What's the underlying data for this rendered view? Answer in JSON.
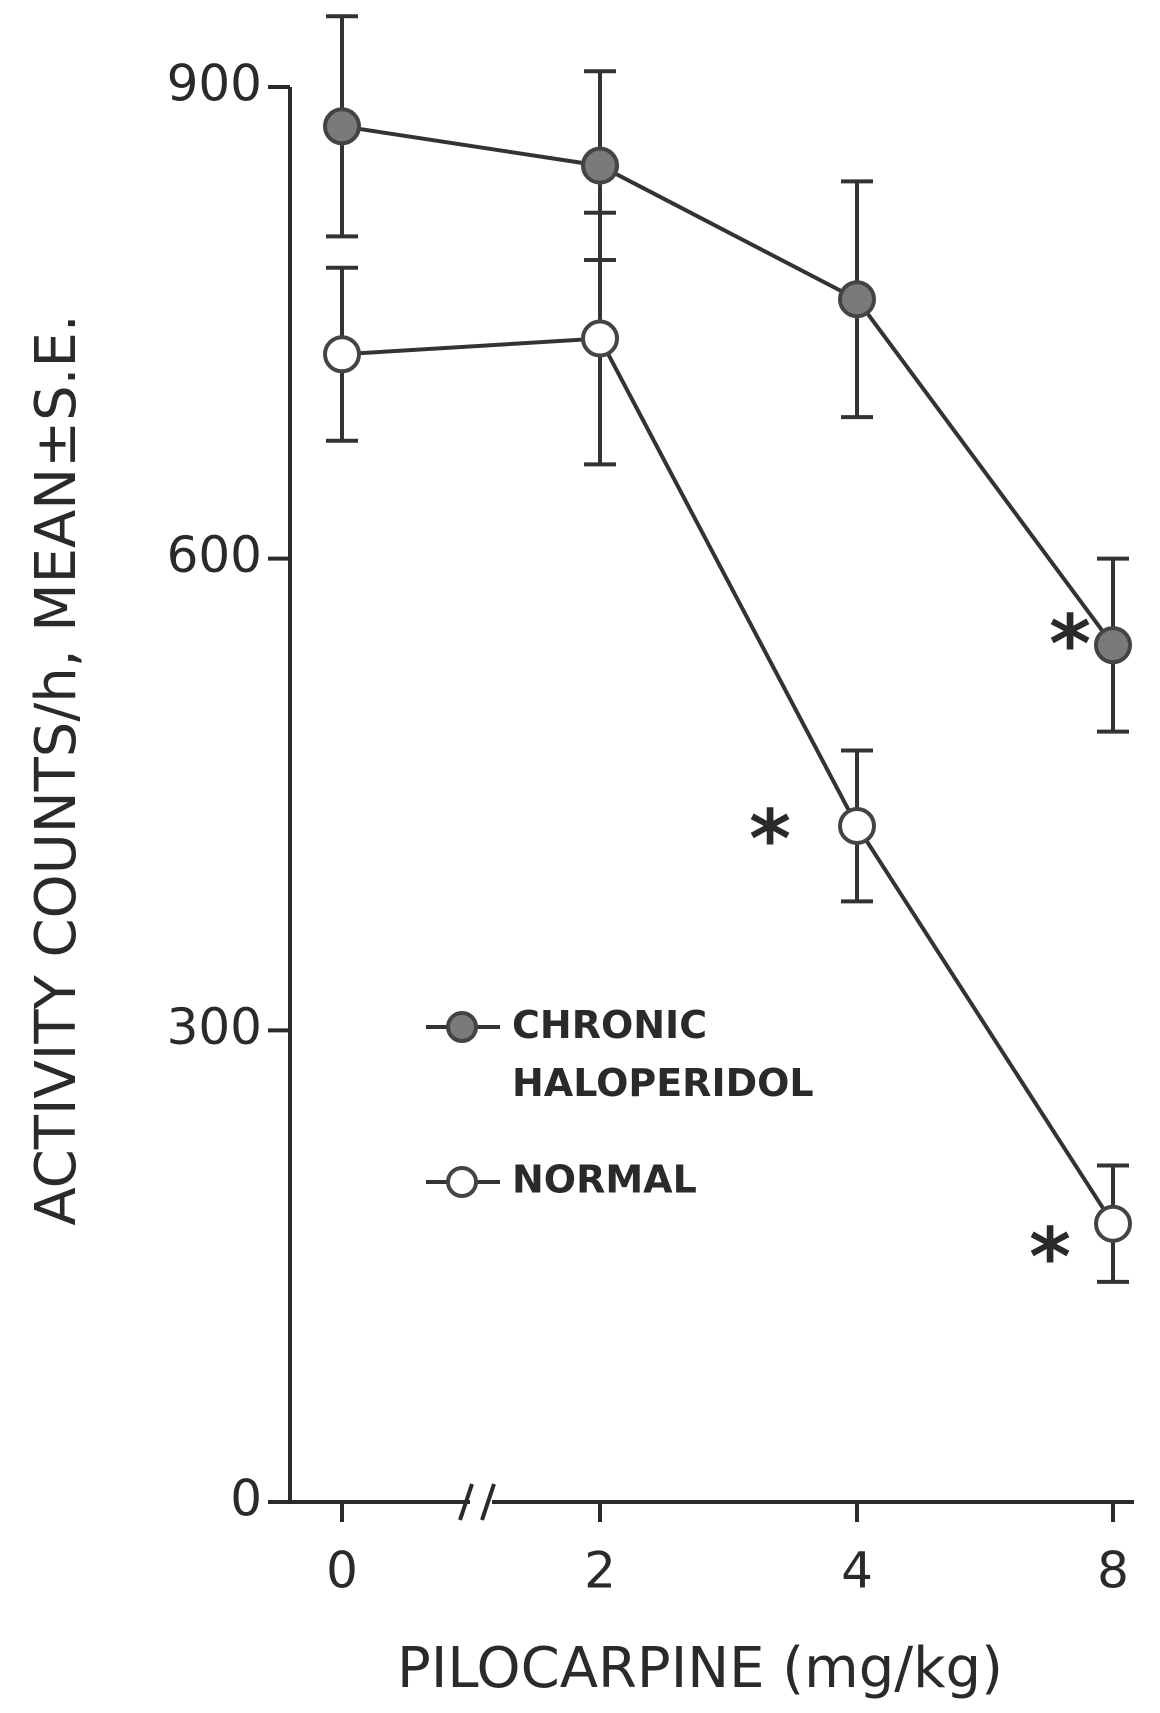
{
  "chart_data": {
    "type": "line",
    "categories": [
      "0",
      "2",
      "4",
      "8"
    ],
    "xlabel": "PILOCARPINE (mg/kg)",
    "ylabel": "ACTIVITY COUNTS/h, MEAN±S.E.",
    "ylim": [
      0,
      900
    ],
    "yticks": [
      0,
      300,
      600,
      900
    ],
    "series": [
      {
        "name": "CHRONIC HALOPERIDOL",
        "color": "#7a7a7a",
        "marker": "filled",
        "values": [
          875,
          850,
          765,
          545
        ],
        "errors": [
          70,
          60,
          75,
          55
        ]
      },
      {
        "name": "NORMAL",
        "color": "#ffffff",
        "marker": "open",
        "values": [
          730,
          740,
          430,
          177
        ],
        "errors": [
          55,
          80,
          48,
          37
        ]
      }
    ],
    "annotations": [
      "*",
      "*",
      "*"
    ]
  }
}
